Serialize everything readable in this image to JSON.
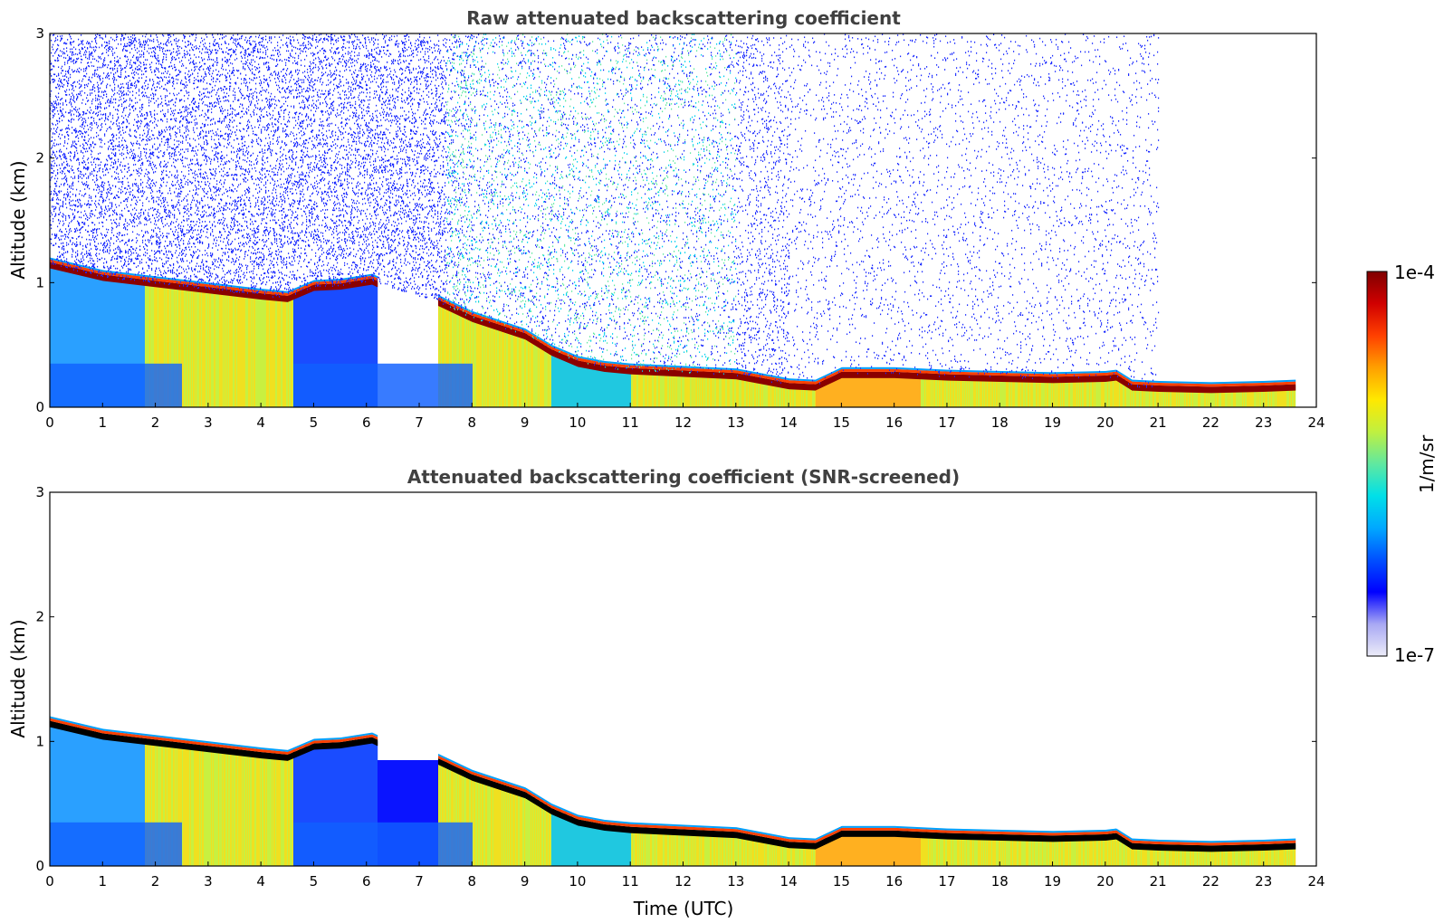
{
  "chart_data": [
    {
      "type": "heatmap",
      "title": "Raw attenuated backscattering coefficient",
      "xlabel": "",
      "ylabel": "Altitude (km)",
      "xlim": [
        0,
        24
      ],
      "ylim": [
        0,
        3
      ],
      "xticks": [
        "0",
        "1",
        "2",
        "3",
        "4",
        "5",
        "6",
        "7",
        "8",
        "9",
        "10",
        "11",
        "12",
        "13",
        "14",
        "15",
        "16",
        "17",
        "18",
        "19",
        "20",
        "21",
        "22",
        "23",
        "24"
      ],
      "yticks": [
        "0",
        "1",
        "2",
        "3"
      ],
      "layer_top_km": [
        [
          0,
          1.15
        ],
        [
          1,
          1.05
        ],
        [
          2,
          1.0
        ],
        [
          3,
          0.95
        ],
        [
          4,
          0.9
        ],
        [
          4.5,
          0.88
        ],
        [
          5,
          0.97
        ],
        [
          5.5,
          0.98
        ],
        [
          6.1,
          1.02
        ],
        [
          6.2,
          1.0
        ],
        [
          7.35,
          0.85
        ],
        [
          8,
          0.72
        ],
        [
          9,
          0.58
        ],
        [
          9.5,
          0.45
        ],
        [
          10,
          0.36
        ],
        [
          10.5,
          0.32
        ],
        [
          11,
          0.3
        ],
        [
          12,
          0.28
        ],
        [
          13,
          0.26
        ],
        [
          13.5,
          0.22
        ],
        [
          14,
          0.18
        ],
        [
          14.5,
          0.17
        ],
        [
          15,
          0.27
        ],
        [
          16,
          0.27
        ],
        [
          17,
          0.25
        ],
        [
          18,
          0.24
        ],
        [
          19,
          0.23
        ],
        [
          20,
          0.24
        ],
        [
          20.2,
          0.25
        ],
        [
          20.5,
          0.17
        ],
        [
          21,
          0.16
        ],
        [
          22,
          0.15
        ],
        [
          23,
          0.16
        ],
        [
          23.6,
          0.17
        ]
      ],
      "data_gap_hours": [
        6.2,
        7.35
      ]
    },
    {
      "type": "heatmap",
      "title": "Attenuated backscattering coefficient (SNR-screened)",
      "xlabel": "Time (UTC)",
      "ylabel": "Altitude (km)",
      "xlim": [
        0,
        24
      ],
      "ylim": [
        0,
        3
      ],
      "xticks": [
        "0",
        "1",
        "2",
        "3",
        "4",
        "5",
        "6",
        "7",
        "8",
        "9",
        "10",
        "11",
        "12",
        "13",
        "14",
        "15",
        "16",
        "17",
        "18",
        "19",
        "20",
        "21",
        "22",
        "23",
        "24"
      ],
      "yticks": [
        "0",
        "1",
        "2",
        "3"
      ]
    }
  ],
  "colorbar": {
    "label": "1/m/sr",
    "max_label": "1e-4",
    "min_label": "1e-7",
    "range": [
      1e-07,
      0.0001
    ],
    "colors": [
      "#ececf8",
      "#a8a8f4",
      "#0000ff",
      "#0050ff",
      "#00a8ff",
      "#00e0e8",
      "#60e8a0",
      "#c0f040",
      "#ffe800",
      "#ffa000",
      "#ff4000",
      "#d00000",
      "#800000"
    ]
  }
}
